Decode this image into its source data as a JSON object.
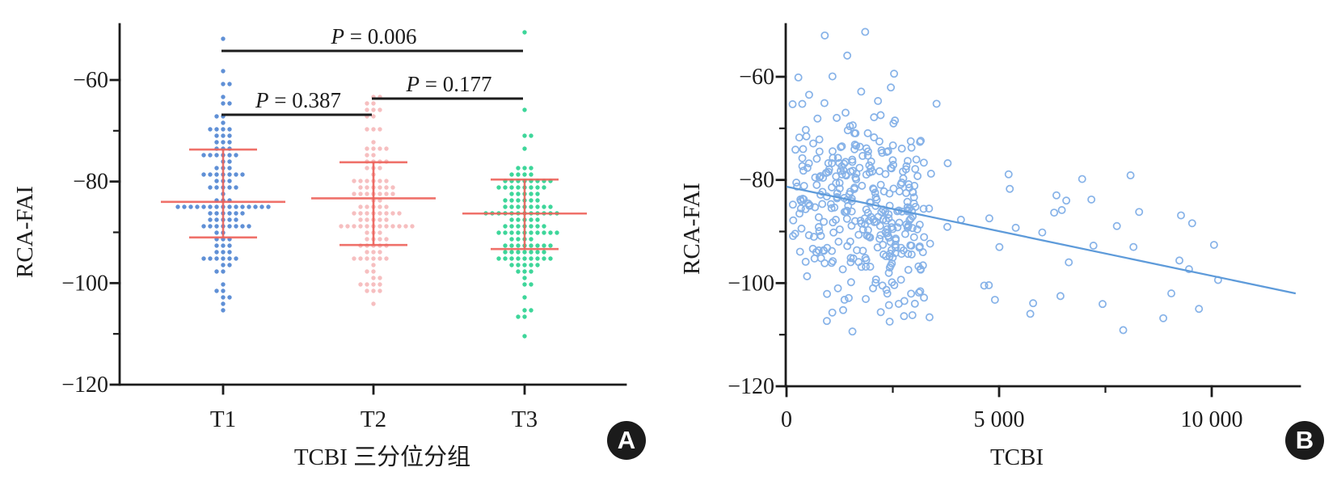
{
  "figure": {
    "background": "#ffffff",
    "text_color": "#1c1c1c",
    "axis_color": "#1c1c1c",
    "panels": [
      {
        "badge": "A"
      },
      {
        "badge": "B"
      }
    ]
  },
  "chart_data": [
    {
      "type": "scatter",
      "subtype": "beeswarm-with-mean-sd-errorbars",
      "panel": "A",
      "title": "",
      "xlabel": "TCBI 三分位分组",
      "ylabel": "RCA-FAI",
      "categories": [
        "T1",
        "T2",
        "T3"
      ],
      "ylim": [
        -120,
        -49
      ],
      "yticks": [
        -60,
        -80,
        -100,
        -120
      ],
      "ytick_labels": [
        "−60",
        "−80",
        "−100",
        "−120"
      ],
      "yticks_minor": [
        -70,
        -90,
        -110
      ],
      "grid": false,
      "errorbar_color": "#ed625a",
      "groups": [
        {
          "label": "T1",
          "n": 115,
          "center": -84.0,
          "upper_whisker": -73.7,
          "lower_whisker": -91.0,
          "ymax": -52,
          "ymin": -105.5,
          "dot_color": "#6090d6"
        },
        {
          "label": "T2",
          "n": 112,
          "center": -83.3,
          "upper_whisker": -76.2,
          "lower_whisker": -92.5,
          "ymax": -63,
          "ymin": -104.0,
          "dot_color": "#f6bfc0"
        },
        {
          "label": "T3",
          "n": 126,
          "center": -86.3,
          "upper_whisker": -79.6,
          "lower_whisker": -93.3,
          "ymax": -51,
          "ymin": -110.0,
          "dot_color": "#3ed69a"
        }
      ],
      "comparisons": [
        {
          "label": "P = 0.387",
          "between": [
            "T1",
            "T2"
          ]
        },
        {
          "label": "P = 0.177",
          "between": [
            "T2",
            "T3"
          ]
        },
        {
          "label": "P = 0.006",
          "between": [
            "T1",
            "T3"
          ]
        }
      ]
    },
    {
      "type": "scatter",
      "panel": "B",
      "title": "",
      "xlabel": "TCBI",
      "ylabel": "RCA-FAI",
      "xlim": [
        0,
        12000
      ],
      "ylim": [
        -120,
        -49
      ],
      "xticks": [
        0,
        5000,
        10000
      ],
      "xtick_labels": [
        "0",
        "5 000",
        "10 000"
      ],
      "xticks_minor": [
        2500,
        7500
      ],
      "yticks": [
        -60,
        -80,
        -100,
        -120
      ],
      "ytick_labels": [
        "−60",
        "−80",
        "−100",
        "−120"
      ],
      "yticks_minor": [
        -70,
        -90,
        -110
      ],
      "grid": false,
      "n_points": 400,
      "marker": {
        "shape": "open-circle",
        "color": "#86b2e8"
      },
      "trend_line": {
        "x": [
          0,
          11975
        ],
        "y": [
          -81.3,
          -102.0
        ],
        "color": "#5e9bda"
      },
      "visible_outlier_points": [
        [
          900,
          -52.0
        ],
        [
          1850,
          -51.3
        ],
        [
          5800,
          -103.9
        ],
        [
          6580,
          -84.0
        ],
        [
          7170,
          -83.8
        ],
        [
          8160,
          -93.0
        ],
        [
          9050,
          -102.0
        ],
        [
          9540,
          -88.4
        ],
        [
          9700,
          -105.0
        ],
        [
          10150,
          -99.4
        ]
      ],
      "x_distribution": {
        "shape": "right-skewed",
        "dense_range": [
          0,
          3200
        ],
        "sparse_tail_to": 10600
      },
      "y_distribution": {
        "approx_mean": -85,
        "approx_sd": 9.5,
        "range": [
          -110,
          -51
        ]
      }
    }
  ]
}
